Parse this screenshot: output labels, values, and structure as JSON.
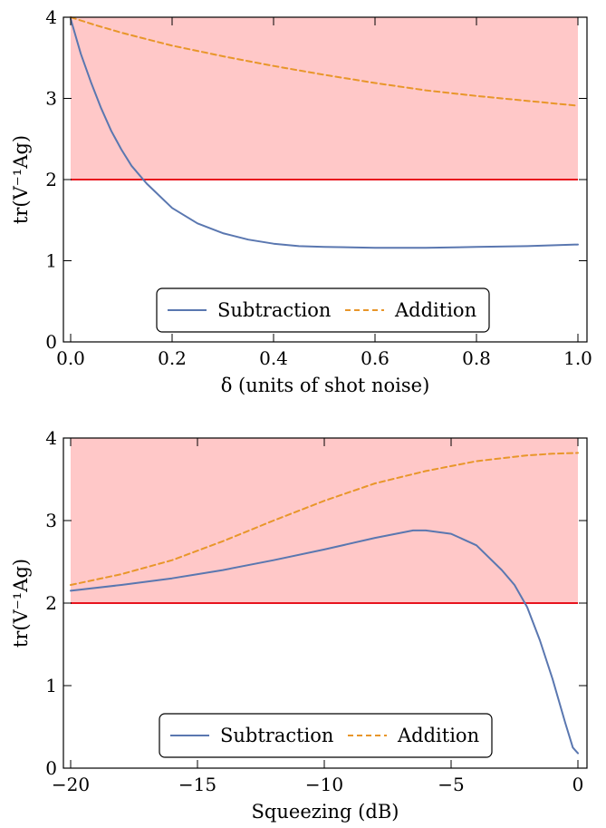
{
  "chart_data": [
    {
      "type": "line",
      "xlabel": "δ (units of shot noise)",
      "ylabel": "tr(V⁻¹Ag)",
      "xlim": [
        0,
        1
      ],
      "ylim": [
        0,
        4
      ],
      "xticks": [
        0.0,
        0.2,
        0.4,
        0.6,
        0.8,
        1.0
      ],
      "xtick_labels": [
        "0.0",
        "0.2",
        "0.4",
        "0.6",
        "0.8",
        "1.0"
      ],
      "yticks": [
        0,
        1,
        2,
        3,
        4
      ],
      "ytick_labels": [
        "0",
        "1",
        "2",
        "3",
        "4"
      ],
      "shaded_region": {
        "x_range": [
          0,
          1
        ],
        "y_range": [
          2,
          4
        ],
        "color": "#ffc8c8"
      },
      "reference_line": {
        "y": 2,
        "color": "#e8141e"
      },
      "legend": {
        "placement": "bottom-center"
      },
      "series": [
        {
          "name": "Subtraction",
          "style": "solid",
          "color": "#5a77b0",
          "x": [
            0,
            0.02,
            0.04,
            0.06,
            0.08,
            0.1,
            0.12,
            0.15,
            0.2,
            0.25,
            0.3,
            0.35,
            0.4,
            0.45,
            0.5,
            0.6,
            0.7,
            0.8,
            0.9,
            1.0
          ],
          "y": [
            3.98,
            3.55,
            3.2,
            2.88,
            2.6,
            2.37,
            2.17,
            1.95,
            1.65,
            1.46,
            1.34,
            1.26,
            1.21,
            1.18,
            1.17,
            1.16,
            1.16,
            1.17,
            1.18,
            1.2
          ]
        },
        {
          "name": "Addition",
          "style": "dashed",
          "color": "#e8962a",
          "x": [
            0,
            0.05,
            0.1,
            0.15,
            0.2,
            0.3,
            0.4,
            0.5,
            0.6,
            0.7,
            0.8,
            0.9,
            1.0
          ],
          "y": [
            4.0,
            3.9,
            3.81,
            3.73,
            3.65,
            3.52,
            3.4,
            3.29,
            3.19,
            3.1,
            3.03,
            2.97,
            2.91
          ]
        }
      ]
    },
    {
      "type": "line",
      "xlabel": "Squeezing (dB)",
      "ylabel": "tr(V⁻¹Ag)",
      "xlim": [
        -20,
        0
      ],
      "ylim": [
        0,
        4
      ],
      "xticks": [
        -20,
        -15,
        -10,
        -5,
        0
      ],
      "xtick_labels": [
        "−20",
        "−15",
        "−10",
        "−5",
        "0"
      ],
      "yticks": [
        0,
        1,
        2,
        3,
        4
      ],
      "ytick_labels": [
        "0",
        "1",
        "2",
        "3",
        "4"
      ],
      "shaded_region": {
        "x_range": [
          -20,
          0
        ],
        "y_range": [
          2,
          4
        ],
        "color": "#ffc8c8"
      },
      "reference_line": {
        "y": 2,
        "color": "#e8141e"
      },
      "legend": {
        "placement": "bottom-center"
      },
      "series": [
        {
          "name": "Subtraction",
          "style": "solid",
          "color": "#5a77b0",
          "x": [
            -20,
            -18,
            -16,
            -14,
            -12,
            -10,
            -8,
            -7,
            -6.5,
            -6,
            -5,
            -4,
            -3,
            -2.5,
            -2,
            -1.5,
            -1,
            -0.5,
            -0.2,
            0
          ],
          "y": [
            2.15,
            2.22,
            2.3,
            2.4,
            2.52,
            2.65,
            2.79,
            2.85,
            2.88,
            2.88,
            2.84,
            2.7,
            2.4,
            2.22,
            1.95,
            1.55,
            1.08,
            0.55,
            0.25,
            0.18
          ]
        },
        {
          "name": "Addition",
          "style": "dashed",
          "color": "#e8962a",
          "x": [
            -20,
            -18,
            -16,
            -14,
            -12,
            -10,
            -8,
            -6,
            -4,
            -2,
            -1,
            0
          ],
          "y": [
            2.22,
            2.35,
            2.52,
            2.75,
            3.0,
            3.24,
            3.45,
            3.6,
            3.72,
            3.79,
            3.81,
            3.82
          ]
        }
      ]
    }
  ]
}
